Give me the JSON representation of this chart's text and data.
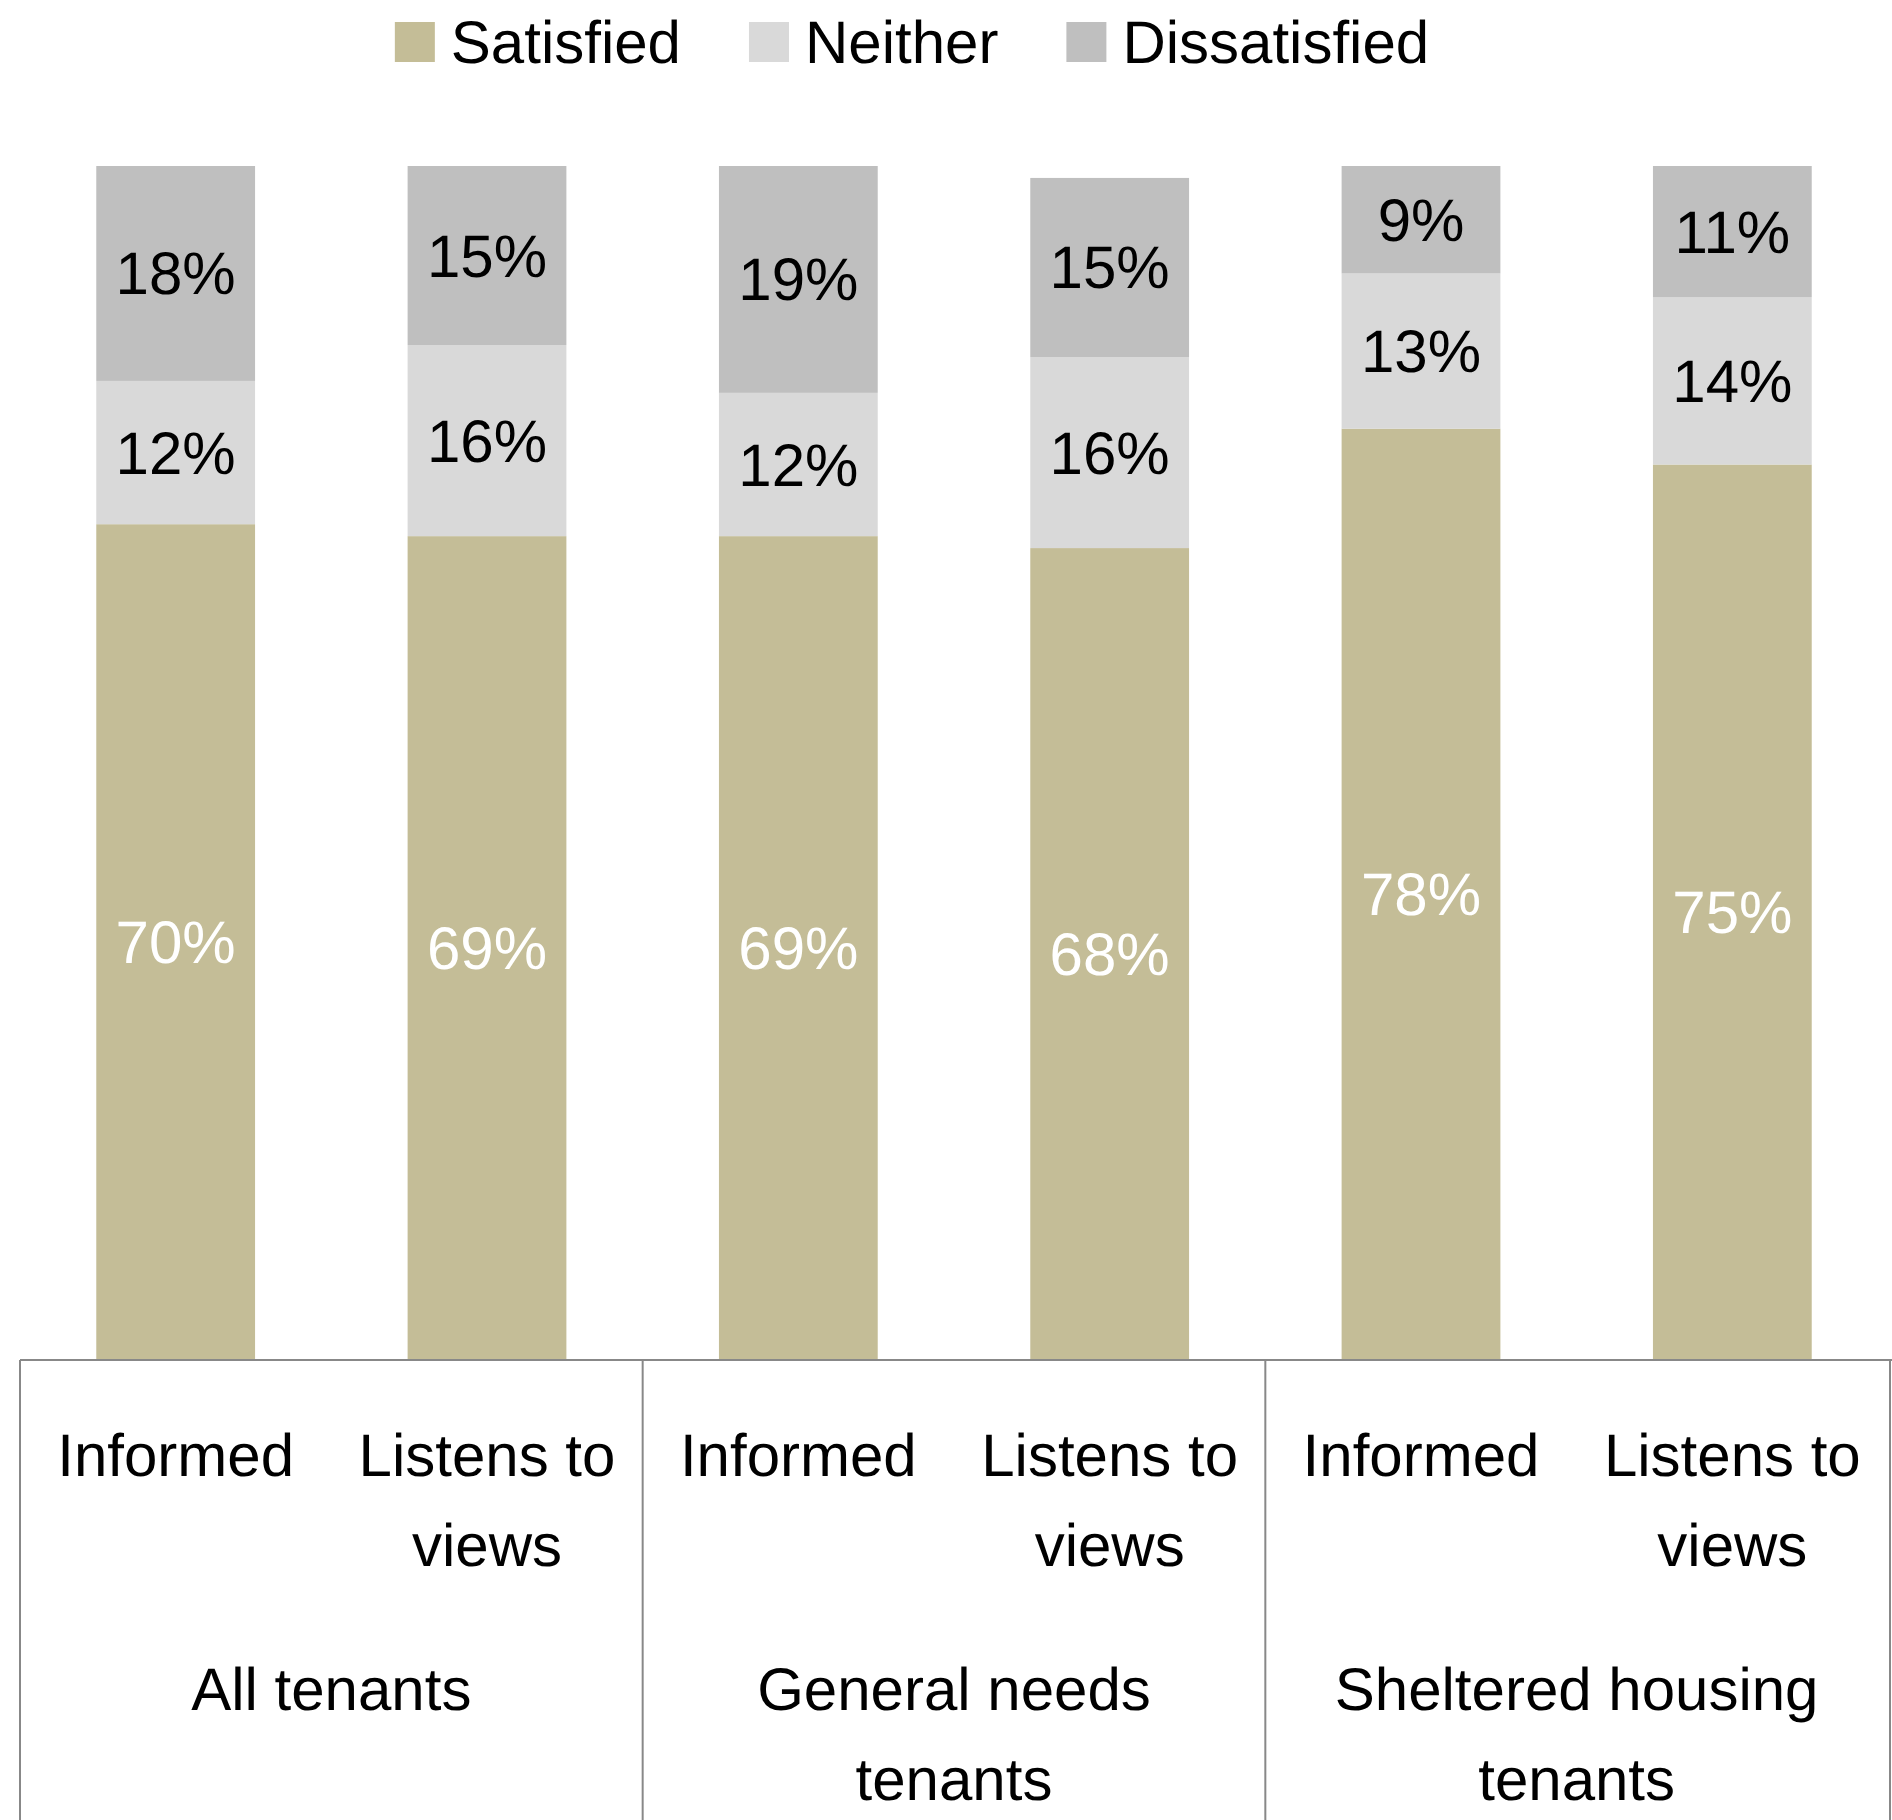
{
  "chart_data": {
    "type": "bar",
    "stacked": true,
    "legend": "top",
    "categories": [
      "Informed",
      "Listens to views",
      "Informed",
      "Listens to views",
      "Informed",
      "Listens to views"
    ],
    "annotations": [
      "All tenants",
      "General needs tenants",
      "Sheltered housing tenants"
    ],
    "series": [
      {
        "name": "Satisfied",
        "color": "#c4bd97",
        "values": [
          70,
          69,
          69,
          68,
          78,
          75
        ],
        "value_labels": [
          "70%",
          "69%",
          "69%",
          "68%",
          "78%",
          "75%"
        ]
      },
      {
        "name": "Neither",
        "color": "#d9d9d9",
        "values": [
          12,
          16,
          12,
          16,
          13,
          14
        ],
        "value_labels": [
          "12%",
          "16%",
          "12%",
          "16%",
          "13%",
          "14%"
        ]
      },
      {
        "name": "Dissatisfied",
        "color": "#bfbfbf",
        "values": [
          18,
          15,
          19,
          15,
          9,
          11
        ],
        "value_labels": [
          "18%",
          "15%",
          "19%",
          "15%",
          "9%",
          "11%"
        ]
      }
    ]
  }
}
